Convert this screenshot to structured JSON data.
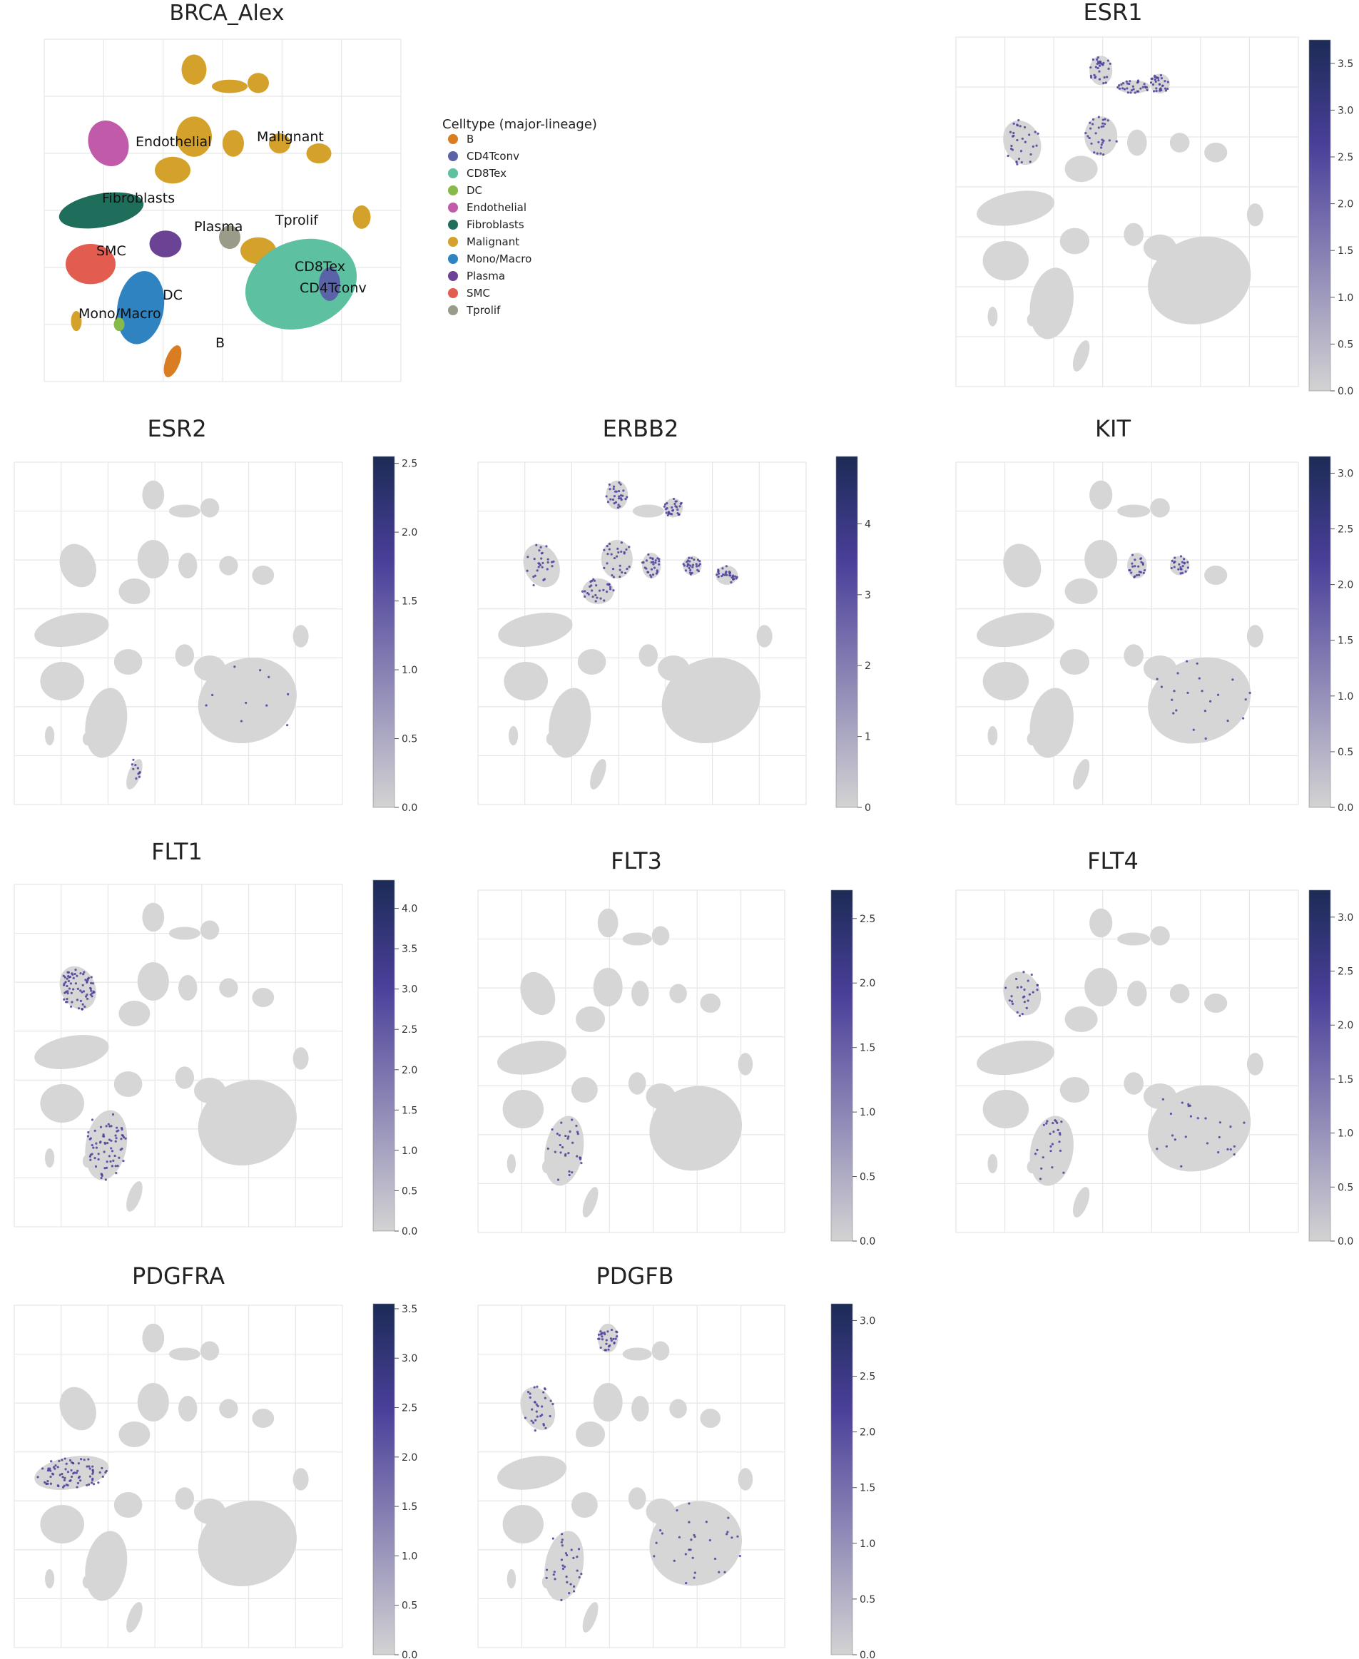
{
  "figure": {
    "main_title": "BRCA_Alex",
    "legend_title": "Celltype (major-lineage)",
    "legend_entries": [
      "B",
      "CD4Tconv",
      "CD8Tex",
      "DC",
      "Endothelial",
      "Fibroblasts",
      "Malignant",
      "Mono/Macro",
      "Plasma",
      "SMC",
      "Tprolif"
    ]
  },
  "colors": {
    "B": "#d97c22",
    "CD4Tconv": "#5a63a8",
    "CD8Tex": "#5cc0a1",
    "DC": "#88b94b",
    "Endothelial": "#c05aa9",
    "Fibroblasts": "#1f6e5c",
    "Malignant": "#d4a22a",
    "Mono/Macro": "#2f83c0",
    "Plasma": "#6a4394",
    "SMC": "#e25d4f",
    "Tprolif": "#9b9b8a",
    "background_cells": "#d6d6d6",
    "cmap_low": "#d3d3d3",
    "cmap_mid": "#4a3f9a",
    "cmap_high": "#1c2b56",
    "grid": "#e6e6e6"
  },
  "chart_data": [
    {
      "type": "scatter",
      "title": "BRCA_Alex",
      "kind": "umap-celltype",
      "legend_title": "Celltype (major-lineage)",
      "categories": [
        "B",
        "CD4Tconv",
        "CD8Tex",
        "DC",
        "Endothelial",
        "Fibroblasts",
        "Malignant",
        "Mono/Macro",
        "Plasma",
        "SMC",
        "Tprolif"
      ],
      "cluster_labels": [
        "Endothelial",
        "Malignant",
        "Fibroblasts",
        "Plasma",
        "Tprolif",
        "SMC",
        "CD8Tex",
        "CD4Tconv",
        "DC",
        "Mono/Macro",
        "B"
      ]
    },
    {
      "type": "scatter",
      "title": "ESR1",
      "kind": "umap-expression",
      "colorbar_ticks": [
        "0.0",
        "0.5",
        "1.0",
        "1.5",
        "2.0",
        "2.5",
        "3.0",
        "3.5"
      ],
      "colorbar_range": [
        0,
        3.75
      ]
    },
    {
      "type": "scatter",
      "title": "ESR2",
      "kind": "umap-expression",
      "colorbar_ticks": [
        "0.0",
        "0.5",
        "1.0",
        "1.5",
        "2.0",
        "2.5"
      ],
      "colorbar_range": [
        0,
        2.55
      ]
    },
    {
      "type": "scatter",
      "title": "ERBB2",
      "kind": "umap-expression",
      "colorbar_ticks": [
        "0",
        "1",
        "2",
        "3",
        "4"
      ],
      "colorbar_range": [
        0,
        4.95
      ]
    },
    {
      "type": "scatter",
      "title": "KIT",
      "kind": "umap-expression",
      "colorbar_ticks": [
        "0.0",
        "0.5",
        "1.0",
        "1.5",
        "2.0",
        "2.5",
        "3.0"
      ],
      "colorbar_range": [
        0,
        3.15
      ]
    },
    {
      "type": "scatter",
      "title": "FLT1",
      "kind": "umap-expression",
      "colorbar_ticks": [
        "0.0",
        "0.5",
        "1.0",
        "1.5",
        "2.0",
        "2.5",
        "3.0",
        "3.5",
        "4.0"
      ],
      "colorbar_range": [
        0,
        4.35
      ]
    },
    {
      "type": "scatter",
      "title": "FLT3",
      "kind": "umap-expression",
      "colorbar_ticks": [
        "0.0",
        "0.5",
        "1.0",
        "1.5",
        "2.0",
        "2.5"
      ],
      "colorbar_range": [
        0,
        2.72
      ]
    },
    {
      "type": "scatter",
      "title": "FLT4",
      "kind": "umap-expression",
      "colorbar_ticks": [
        "0.0",
        "0.5",
        "1.0",
        "1.5",
        "2.0",
        "2.5",
        "3.0"
      ],
      "colorbar_range": [
        0,
        3.25
      ]
    },
    {
      "type": "scatter",
      "title": "PDGFRA",
      "kind": "umap-expression",
      "colorbar_ticks": [
        "0.0",
        "0.5",
        "1.0",
        "1.5",
        "2.0",
        "2.5",
        "3.0",
        "3.5"
      ],
      "colorbar_range": [
        0,
        3.55
      ]
    },
    {
      "type": "scatter",
      "title": "PDGFB",
      "kind": "umap-expression",
      "colorbar_ticks": [
        "0.0",
        "0.5",
        "1.0",
        "1.5",
        "2.0",
        "2.5",
        "3.0"
      ],
      "colorbar_range": [
        0,
        3.15
      ]
    }
  ]
}
